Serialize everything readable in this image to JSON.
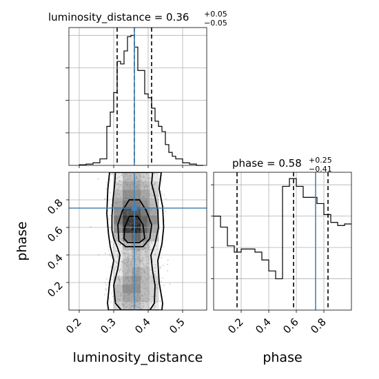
{
  "titles": {
    "ld": {
      "base": "luminosity_distance = 0.36",
      "sup": "+0.05",
      "sub": "−0.05"
    },
    "phase": {
      "base": "phase = 0.58",
      "sup": "+0.25",
      "sub": "−0.41"
    }
  },
  "xlabels": {
    "ld": "luminosity_distance",
    "phase": "phase"
  },
  "ylabels": {
    "phase": "phase"
  },
  "colors": {
    "truth": "#4682b4",
    "hist": "#000000",
    "grid": "#b0b0b0"
  },
  "chart_data": [
    {
      "type": "histogram",
      "panel": "luminosity_distance marginal",
      "parameter": "luminosity_distance",
      "xlim": [
        0.17,
        0.57
      ],
      "bin_edges": [
        0.2,
        0.22,
        0.24,
        0.26,
        0.28,
        0.29,
        0.3,
        0.31,
        0.32,
        0.33,
        0.34,
        0.35,
        0.36,
        0.37,
        0.38,
        0.39,
        0.4,
        0.41,
        0.42,
        0.43,
        0.44,
        0.45,
        0.46,
        0.47,
        0.48,
        0.5,
        0.52,
        0.54,
        0.56
      ],
      "density": [
        0.005,
        0.01,
        0.02,
        0.05,
        0.3,
        0.41,
        0.56,
        0.8,
        0.78,
        0.88,
        0.99,
        1.0,
        0.91,
        0.73,
        0.73,
        0.55,
        0.52,
        0.44,
        0.34,
        0.3,
        0.26,
        0.16,
        0.1,
        0.07,
        0.05,
        0.02,
        0.01,
        0.0
      ],
      "quantile_lines": [
        0.31,
        0.36,
        0.41
      ],
      "truth": 0.36,
      "title": "luminosity_distance = 0.36 (+0.05 / −0.05)"
    },
    {
      "type": "histogram",
      "panel": "phase marginal",
      "parameter": "phase",
      "xlim": [
        0.0,
        1.0
      ],
      "xticks": [
        0.2,
        0.4,
        0.6,
        0.8
      ],
      "bin_edges": [
        0.0,
        0.05,
        0.1,
        0.15,
        0.2,
        0.25,
        0.3,
        0.35,
        0.4,
        0.45,
        0.5,
        0.55,
        0.6,
        0.65,
        0.7,
        0.75,
        0.8,
        0.85,
        0.9,
        0.95,
        1.0
      ],
      "density": [
        0.6,
        0.53,
        0.41,
        0.37,
        0.39,
        0.39,
        0.37,
        0.32,
        0.25,
        0.2,
        0.79,
        0.84,
        0.79,
        0.72,
        0.72,
        0.68,
        0.61,
        0.56,
        0.54,
        0.55
      ],
      "quantile_lines": [
        0.17,
        0.58,
        0.83
      ],
      "truth": 0.74,
      "xlabel": "phase",
      "title": "phase = 0.58 (+0.25 / −0.41)"
    },
    {
      "type": "scatter",
      "panel": "2D posterior luminosity_distance vs phase",
      "x_param": "luminosity_distance",
      "y_param": "phase",
      "xlim": [
        0.17,
        0.57
      ],
      "ylim": [
        0.0,
        1.0
      ],
      "xticks": [
        0.2,
        0.3,
        0.4,
        0.5
      ],
      "yticks": [
        0.2,
        0.4,
        0.6,
        0.8
      ],
      "xlabel": "luminosity_distance",
      "ylabel": "phase",
      "truth": {
        "x": 0.36,
        "y": 0.74
      },
      "density_grid": {
        "x_range": [
          0.3,
          0.43
        ],
        "y_range": [
          0.0,
          1.0
        ],
        "values": [
          [
            0.2,
            0.3,
            0.3,
            0.2,
            0.1
          ],
          [
            0.3,
            0.4,
            0.4,
            0.3,
            0.2
          ],
          [
            0.3,
            0.5,
            0.5,
            0.3,
            0.2
          ],
          [
            0.2,
            0.4,
            0.5,
            0.3,
            0.2
          ],
          [
            0.1,
            0.3,
            0.4,
            0.3,
            0.1
          ],
          [
            0.1,
            0.3,
            0.3,
            0.2,
            0.1
          ],
          [
            0.1,
            0.2,
            0.3,
            0.2,
            0.1
          ],
          [
            0.1,
            0.3,
            0.4,
            0.3,
            0.1
          ],
          [
            0.3,
            0.6,
            0.7,
            0.5,
            0.3
          ],
          [
            0.5,
            0.9,
            1.0,
            0.7,
            0.4
          ],
          [
            0.6,
            0.9,
            0.9,
            0.7,
            0.5
          ],
          [
            0.5,
            0.8,
            0.8,
            0.6,
            0.4
          ],
          [
            0.4,
            0.6,
            0.6,
            0.5,
            0.3
          ],
          [
            0.3,
            0.5,
            0.5,
            0.4,
            0.2
          ],
          [
            0.2,
            0.4,
            0.4,
            0.3,
            0.2
          ],
          [
            0.1,
            0.3,
            0.3,
            0.2,
            0.1
          ]
        ]
      },
      "contours": [
        [
          [
            0.33,
            0.52
          ],
          [
            0.34,
            0.49
          ],
          [
            0.375,
            0.49
          ],
          [
            0.39,
            0.52
          ],
          [
            0.385,
            0.62
          ],
          [
            0.37,
            0.68
          ],
          [
            0.345,
            0.68
          ],
          [
            0.332,
            0.6
          ]
        ],
        [
          [
            0.315,
            0.5
          ],
          [
            0.335,
            0.46
          ],
          [
            0.385,
            0.46
          ],
          [
            0.405,
            0.52
          ],
          [
            0.41,
            0.62
          ],
          [
            0.395,
            0.72
          ],
          [
            0.375,
            0.8
          ],
          [
            0.345,
            0.8
          ],
          [
            0.325,
            0.72
          ],
          [
            0.312,
            0.62
          ]
        ],
        [
          [
            0.3,
            0.52
          ],
          [
            0.31,
            0.46
          ],
          [
            0.318,
            0.4
          ],
          [
            0.312,
            0.3
          ],
          [
            0.3,
            0.18
          ],
          [
            0.305,
            0.05
          ],
          [
            0.322,
            0.0
          ],
          [
            0.405,
            0.0
          ],
          [
            0.418,
            0.05
          ],
          [
            0.42,
            0.18
          ],
          [
            0.412,
            0.3
          ],
          [
            0.408,
            0.4
          ],
          [
            0.42,
            0.48
          ],
          [
            0.43,
            0.6
          ],
          [
            0.428,
            0.72
          ],
          [
            0.42,
            0.82
          ],
          [
            0.41,
            0.92
          ],
          [
            0.413,
            1.0
          ],
          [
            0.305,
            1.0
          ],
          [
            0.303,
            0.92
          ],
          [
            0.298,
            0.8
          ],
          [
            0.295,
            0.68
          ],
          [
            0.295,
            0.58
          ]
        ],
        [
          [
            0.285,
            0.55
          ],
          [
            0.29,
            0.46
          ],
          [
            0.3,
            0.36
          ],
          [
            0.288,
            0.2
          ],
          [
            0.282,
            0.05
          ],
          [
            0.285,
            0.0
          ],
          [
            0.44,
            0.0
          ],
          [
            0.442,
            0.05
          ],
          [
            0.432,
            0.2
          ],
          [
            0.428,
            0.36
          ],
          [
            0.44,
            0.48
          ],
          [
            0.445,
            0.6
          ],
          [
            0.442,
            0.75
          ],
          [
            0.432,
            0.88
          ],
          [
            0.438,
            1.0
          ],
          [
            0.288,
            1.0
          ],
          [
            0.283,
            0.88
          ],
          [
            0.28,
            0.7
          ]
        ]
      ]
    }
  ]
}
